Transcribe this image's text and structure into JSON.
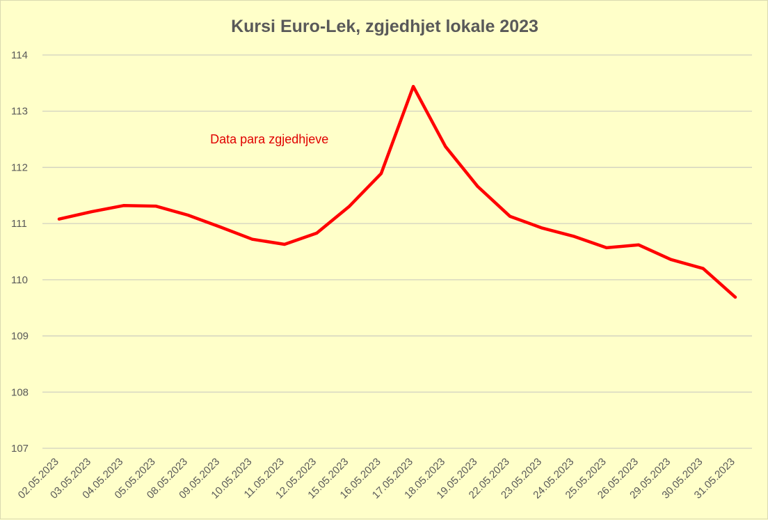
{
  "chart_data": {
    "type": "line",
    "title": "Kursi Euro-Lek, zgjedhjet lokale 2023",
    "xlabel": "",
    "ylabel": "",
    "ylim": [
      107,
      114
    ],
    "yticks": [
      107,
      108,
      109,
      110,
      111,
      112,
      113,
      114
    ],
    "grid": true,
    "legend": "none",
    "line_color": "#ff0000",
    "background_color": "#ffffc9",
    "categories": [
      "02.05.2023",
      "03.05.2023",
      "04.05.2023",
      "05.05.2023",
      "08.05.2023",
      "09.05.2023",
      "10.05.2023",
      "11.05.2023",
      "12.05.2023",
      "15.05.2023",
      "16.05.2023",
      "17.05.2023",
      "18.05.2023",
      "19.05.2023",
      "22.05.2023",
      "23.05.2023",
      "24.05.2023",
      "25.05.2023",
      "26.05.2023",
      "29.05.2023",
      "30.05.2023",
      "31.05.2023"
    ],
    "series": [
      {
        "values": [
          111.08,
          111.21,
          111.32,
          111.31,
          111.15,
          110.94,
          110.72,
          110.63,
          110.83,
          111.3,
          111.89,
          113.44,
          112.37,
          111.66,
          111.13,
          110.92,
          110.77,
          110.57,
          110.62,
          110.36,
          110.2,
          109.69
        ]
      }
    ],
    "annotations": [
      {
        "text": "Data para zgjedhjeve",
        "x": "08.05.2023",
        "y": 112.5
      }
    ]
  }
}
